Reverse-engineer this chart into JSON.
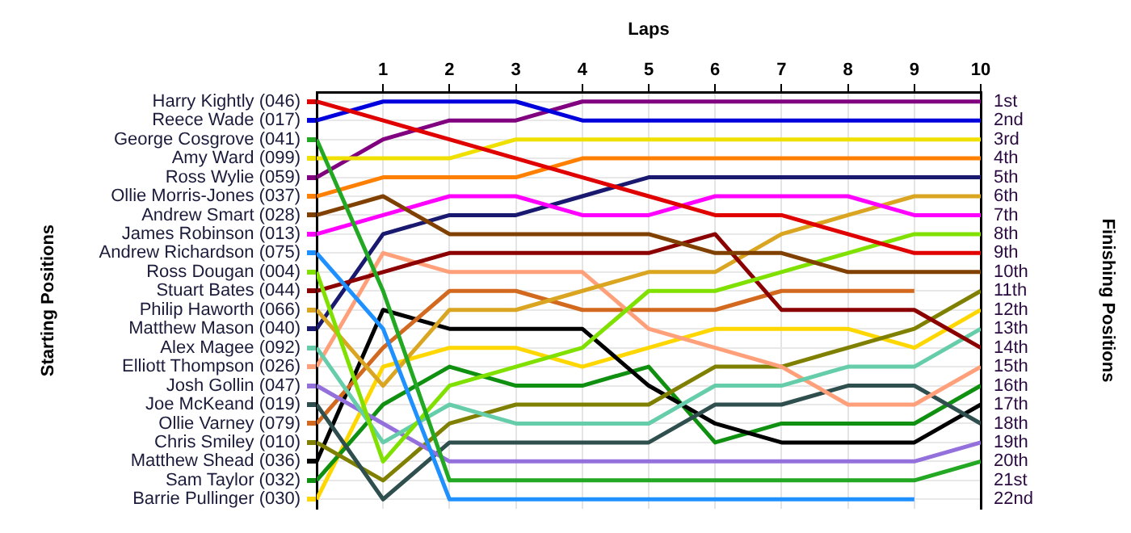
{
  "chart_data": {
    "type": "line",
    "xlabel": "Laps",
    "annotations": [
      "Starting Positions"
    ],
    "y2label": "Finishing Positions",
    "x": [
      0,
      1,
      2,
      3,
      4,
      5,
      6,
      7,
      8,
      9,
      10
    ],
    "xlim": [
      0,
      10
    ],
    "xticks": [
      1,
      2,
      3,
      4,
      5,
      6,
      7,
      8,
      9,
      10
    ],
    "y2lim": [
      22.5,
      0.5
    ],
    "y2ticks": [
      {
        "value": 1,
        "label": "1st"
      },
      {
        "value": 2,
        "label": "2nd"
      },
      {
        "value": 3,
        "label": "3rd"
      },
      {
        "value": 4,
        "label": "4th"
      },
      {
        "value": 5,
        "label": "5th"
      },
      {
        "value": 6,
        "label": "6th"
      },
      {
        "value": 7,
        "label": "7th"
      },
      {
        "value": 8,
        "label": "8th"
      },
      {
        "value": 9,
        "label": "9th"
      },
      {
        "value": 10,
        "label": "10th"
      },
      {
        "value": 11,
        "label": "11th"
      },
      {
        "value": 12,
        "label": "12th"
      },
      {
        "value": 13,
        "label": "13th"
      },
      {
        "value": 14,
        "label": "14th"
      },
      {
        "value": 15,
        "label": "15th"
      },
      {
        "value": 16,
        "label": "16th"
      },
      {
        "value": 17,
        "label": "17th"
      },
      {
        "value": 18,
        "label": "18th"
      },
      {
        "value": 19,
        "label": "19th"
      },
      {
        "value": 20,
        "label": "20th"
      },
      {
        "value": 21,
        "label": "21st"
      },
      {
        "value": 22,
        "label": "22nd"
      }
    ],
    "grid": true,
    "legend": "left",
    "marker": "none",
    "line_style": "solid",
    "series": [
      {
        "name": "Harry Kightly (046)",
        "axis": "y2",
        "color": "#e00000",
        "values": [
          1,
          2,
          3,
          4,
          5,
          6,
          7,
          7,
          8,
          9,
          9
        ]
      },
      {
        "name": "Reece Wade (017)",
        "axis": "y2",
        "color": "#0000dd",
        "values": [
          2,
          1,
          1,
          1,
          2,
          2,
          2,
          2,
          2,
          2,
          2
        ]
      },
      {
        "name": "George Cosgrove (041)",
        "axis": "y2",
        "color": "#22a822",
        "values": [
          3,
          11,
          21,
          21,
          21,
          21,
          21,
          21,
          21,
          21,
          20
        ]
      },
      {
        "name": "Amy Ward (099)",
        "axis": "y2",
        "color": "#f0e000",
        "values": [
          4,
          4,
          4,
          3,
          3,
          3,
          3,
          3,
          3,
          3,
          3
        ]
      },
      {
        "name": "Ross Wylie (059)",
        "axis": "y2",
        "color": "#800080",
        "values": [
          5,
          3,
          2,
          2,
          1,
          1,
          1,
          1,
          1,
          1,
          1
        ]
      },
      {
        "name": "Ollie Morris-Jones (037)",
        "axis": "y2",
        "color": "#ff8000",
        "values": [
          6,
          5,
          5,
          5,
          4,
          4,
          4,
          4,
          4,
          4,
          4
        ]
      },
      {
        "name": "Andrew Smart (028)",
        "axis": "y2",
        "color": "#804000",
        "values": [
          7,
          6,
          8,
          8,
          8,
          8,
          9,
          9,
          10,
          10,
          10
        ]
      },
      {
        "name": "James Robinson (013)",
        "axis": "y2",
        "color": "#ff00ff",
        "values": [
          8,
          7,
          6,
          6,
          7,
          7,
          6,
          6,
          6,
          7,
          7
        ]
      },
      {
        "name": "Andrew Richardson (075)",
        "axis": "y2",
        "color": "#1e90ff",
        "values": [
          9,
          13,
          22,
          22,
          22,
          22,
          22,
          22,
          22,
          22,
          null
        ]
      },
      {
        "name": "Ross Dougan (004)",
        "axis": "y2",
        "color": "#80e000",
        "values": [
          10,
          20,
          16,
          15,
          14,
          11,
          11,
          10,
          9,
          8,
          8
        ]
      },
      {
        "name": "Stuart Bates (044)",
        "axis": "y2",
        "color": "#8b0000",
        "values": [
          11,
          10,
          9,
          9,
          9,
          9,
          8,
          12,
          12,
          12,
          14
        ]
      },
      {
        "name": "Philip Haworth (066)",
        "axis": "y2",
        "color": "#daa520",
        "values": [
          12,
          16,
          12,
          12,
          11,
          10,
          10,
          8,
          7,
          6,
          6
        ]
      },
      {
        "name": "Matthew Mason (040)",
        "axis": "y2",
        "color": "#191970",
        "values": [
          13,
          8,
          7,
          7,
          6,
          5,
          5,
          5,
          5,
          5,
          5
        ]
      },
      {
        "name": "Alex Magee (092)",
        "axis": "y2",
        "color": "#66cdaa",
        "values": [
          14,
          19,
          17,
          18,
          18,
          18,
          16,
          16,
          15,
          15,
          13
        ]
      },
      {
        "name": "Elliott Thompson (026)",
        "axis": "y2",
        "color": "#ffa07a",
        "values": [
          15,
          9,
          10,
          10,
          10,
          13,
          14,
          15,
          17,
          17,
          15
        ]
      },
      {
        "name": "Josh Gollin (047)",
        "axis": "y2",
        "color": "#9370db",
        "values": [
          16,
          18,
          20,
          20,
          20,
          20,
          20,
          20,
          20,
          20,
          19
        ]
      },
      {
        "name": "Joe McKeand (019)",
        "axis": "y2",
        "color": "#2f4f4f",
        "values": [
          17,
          22,
          19,
          19,
          19,
          19,
          17,
          17,
          16,
          16,
          18
        ]
      },
      {
        "name": "Ollie Varney (079)",
        "axis": "y2",
        "color": "#d2691e",
        "values": [
          18,
          14,
          11,
          11,
          12,
          12,
          12,
          11,
          11,
          11,
          null
        ]
      },
      {
        "name": "Chris Smiley (010)",
        "axis": "y2",
        "color": "#808000",
        "values": [
          19,
          21,
          18,
          17,
          17,
          17,
          15,
          15,
          14,
          13,
          11
        ]
      },
      {
        "name": "Matthew Shead (036)",
        "axis": "y2",
        "color": "#000000",
        "values": [
          20,
          12,
          13,
          13,
          13,
          16,
          18,
          19,
          19,
          19,
          17
        ]
      },
      {
        "name": "Sam Taylor (032)",
        "axis": "y2",
        "color": "#109010",
        "values": [
          21,
          17,
          15,
          16,
          16,
          15,
          19,
          18,
          18,
          18,
          16
        ]
      },
      {
        "name": "Barrie Pullinger (030)",
        "axis": "y2",
        "color": "#ffd700",
        "values": [
          22,
          15,
          14,
          14,
          15,
          14,
          13,
          13,
          13,
          14,
          12
        ]
      }
    ]
  }
}
